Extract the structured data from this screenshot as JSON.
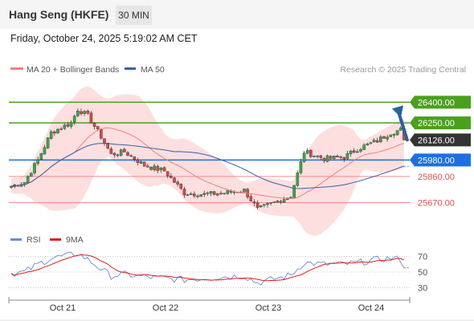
{
  "header": {
    "title": "Hang Seng (HKFE)",
    "timeframe": "30 MIN",
    "datetime": "Friday, October 24, 2025 5:19:02 AM CET"
  },
  "colors": {
    "price_up": "#3aa84a",
    "price_down": "#d44a4a",
    "ma20": "#f08080",
    "ma50": "#3a5fa8",
    "bands": "#fdd9d9",
    "resistance": "#4aa01e",
    "pivot": "#1e6fe0",
    "support": "#f28a8a",
    "arrow": "#2d5f9e",
    "rsi": "#6a8ad8",
    "rsi_ma": "#e02020"
  },
  "chart_data": [
    {
      "type": "candlestick",
      "legend": [
        {
          "name": "MA 20 + Bollinger Bands",
          "color": "#f08080"
        },
        {
          "name": "MA 50",
          "color": "#3a5fa8"
        }
      ],
      "credit": "Research © 2025 Trading Central",
      "x_ticks": [
        "Oct 21",
        "Oct 22",
        "Oct 23",
        "Oct 24"
      ],
      "ylim": [
        25480,
        26560
      ],
      "current_price": "26126.00",
      "levels": [
        {
          "value": 26400,
          "label": "26400.00",
          "kind": "resistance"
        },
        {
          "value": 26250,
          "label": "26250.00",
          "kind": "resistance"
        },
        {
          "value": 25980,
          "label": "25980.00",
          "kind": "pivot"
        },
        {
          "value": 25860,
          "label": "25860.00",
          "kind": "support"
        },
        {
          "value": 25670,
          "label": "25670.00",
          "kind": "support"
        }
      ],
      "arrow": {
        "from": 26126,
        "to": 26400,
        "direction": "up"
      },
      "price_waypoints": [
        {
          "t": 0,
          "p": 25790
        },
        {
          "t": 4,
          "p": 25820
        },
        {
          "t": 8,
          "p": 25980
        },
        {
          "t": 12,
          "p": 26180
        },
        {
          "t": 18,
          "p": 26250
        },
        {
          "t": 20,
          "p": 26350
        },
        {
          "t": 23,
          "p": 26300
        },
        {
          "t": 27,
          "p": 26150
        },
        {
          "t": 30,
          "p": 26020
        },
        {
          "t": 34,
          "p": 26040
        },
        {
          "t": 40,
          "p": 25940
        },
        {
          "t": 46,
          "p": 25900
        },
        {
          "t": 52,
          "p": 25740
        },
        {
          "t": 58,
          "p": 25730
        },
        {
          "t": 64,
          "p": 25740
        },
        {
          "t": 70,
          "p": 25760
        },
        {
          "t": 74,
          "p": 25620
        },
        {
          "t": 78,
          "p": 25660
        },
        {
          "t": 84,
          "p": 25720
        },
        {
          "t": 88,
          "p": 26040
        },
        {
          "t": 94,
          "p": 25990
        },
        {
          "t": 100,
          "p": 26000
        },
        {
          "t": 104,
          "p": 26060
        },
        {
          "t": 110,
          "p": 26120
        },
        {
          "t": 114,
          "p": 26180
        },
        {
          "t": 117,
          "p": 26200
        },
        {
          "t": 118,
          "p": 26126
        }
      ]
    },
    {
      "type": "line",
      "legend": [
        {
          "name": "RSI",
          "color": "#6a8ad8"
        },
        {
          "name": "9MA",
          "color": "#e02020"
        }
      ],
      "y_ticks": [
        "70",
        "50",
        "30"
      ],
      "ylim": [
        20,
        80
      ],
      "rsi_waypoints": [
        {
          "t": 0,
          "v": 48
        },
        {
          "t": 4,
          "v": 50
        },
        {
          "t": 8,
          "v": 60
        },
        {
          "t": 12,
          "v": 68
        },
        {
          "t": 18,
          "v": 72
        },
        {
          "t": 20,
          "v": 74
        },
        {
          "t": 23,
          "v": 66
        },
        {
          "t": 27,
          "v": 54
        },
        {
          "t": 30,
          "v": 45
        },
        {
          "t": 34,
          "v": 47
        },
        {
          "t": 40,
          "v": 44
        },
        {
          "t": 46,
          "v": 42
        },
        {
          "t": 52,
          "v": 40
        },
        {
          "t": 58,
          "v": 42
        },
        {
          "t": 64,
          "v": 44
        },
        {
          "t": 70,
          "v": 45
        },
        {
          "t": 74,
          "v": 36
        },
        {
          "t": 78,
          "v": 40
        },
        {
          "t": 84,
          "v": 46
        },
        {
          "t": 88,
          "v": 62
        },
        {
          "t": 94,
          "v": 60
        },
        {
          "t": 100,
          "v": 60
        },
        {
          "t": 104,
          "v": 62
        },
        {
          "t": 110,
          "v": 66
        },
        {
          "t": 114,
          "v": 68
        },
        {
          "t": 117,
          "v": 66
        },
        {
          "t": 118,
          "v": 58
        }
      ]
    }
  ]
}
